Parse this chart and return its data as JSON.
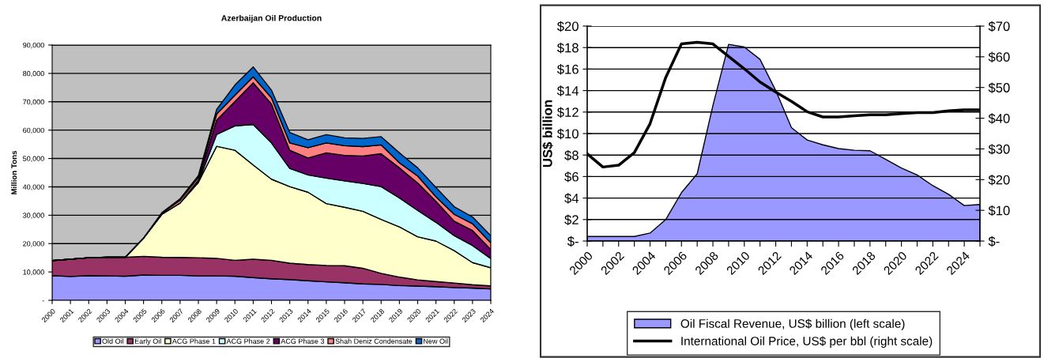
{
  "chart_data": [
    {
      "type": "area",
      "stacked": true,
      "title": "Azerbaijan Oil Production",
      "ylabel": "Million Tons",
      "categories": [
        "2000",
        "2001",
        "2002",
        "2003",
        "2004",
        "2005",
        "2006",
        "2007",
        "2008",
        "2009",
        "2010",
        "2011",
        "2012",
        "2013",
        "2014",
        "2015",
        "2016",
        "2017",
        "2018",
        "2019",
        "2020",
        "2021",
        "2022",
        "2023",
        "2024"
      ],
      "ylim": [
        0,
        90000
      ],
      "yticks": [
        {
          "value": 0,
          "label": "-"
        },
        {
          "value": 10000,
          "label": "10,000"
        },
        {
          "value": 20000,
          "label": "20,000"
        },
        {
          "value": 30000,
          "label": "30,000"
        },
        {
          "value": 40000,
          "label": "40,000"
        },
        {
          "value": 50000,
          "label": "50,000"
        },
        {
          "value": 60000,
          "label": "60,000"
        },
        {
          "value": 70000,
          "label": "70,000"
        },
        {
          "value": 80000,
          "label": "80,000"
        },
        {
          "value": 90000,
          "label": "90,000"
        }
      ],
      "grid": "y",
      "legend": "bottom",
      "series": [
        {
          "name": "Old Oil",
          "color": "#9999ff",
          "values": [
            8700,
            8400,
            8700,
            8600,
            8500,
            8900,
            8800,
            8800,
            8600,
            8600,
            8500,
            8000,
            7600,
            7300,
            6900,
            6500,
            6200,
            5800,
            5600,
            5200,
            5000,
            4800,
            4500,
            4300,
            4000
          ]
        },
        {
          "name": "Early Oil",
          "color": "#993366",
          "values": [
            5300,
            6100,
            6300,
            6600,
            6700,
            6600,
            6400,
            6300,
            6400,
            6200,
            5600,
            6500,
            6500,
            5800,
            5700,
            5800,
            6000,
            5500,
            3900,
            3000,
            2200,
            1800,
            1600,
            1200,
            1100
          ]
        },
        {
          "name": "ACG Phase 1",
          "color": "#ffffcc",
          "values": [
            0,
            0,
            0,
            0,
            0,
            6400,
            15100,
            19200,
            26600,
            39500,
            38800,
            33200,
            28600,
            27000,
            25500,
            21800,
            20600,
            20100,
            19000,
            17700,
            15200,
            14300,
            11400,
            7800,
            6400
          ]
        },
        {
          "name": "ACG Phase 2",
          "color": "#ccffff",
          "values": [
            0,
            0,
            0,
            0,
            0,
            0,
            0,
            0,
            0,
            4200,
            8600,
            14300,
            12800,
            6400,
            6100,
            9000,
            9300,
            9800,
            11600,
            10200,
            9300,
            6600,
            5300,
            6000,
            3200
          ]
        },
        {
          "name": "ACG Phase 3",
          "color": "#660066",
          "values": [
            0,
            0,
            0,
            0,
            0,
            0,
            0,
            0,
            800,
            5000,
            8600,
            14700,
            13700,
            6400,
            6000,
            8900,
            9000,
            9700,
            11600,
            10600,
            9700,
            7400,
            5100,
            5300,
            3200
          ]
        },
        {
          "name": "Shah Deniz Condensate",
          "color": "#ff8080",
          "values": [
            0,
            0,
            0,
            0,
            0,
            0,
            400,
            1000,
            1000,
            2200,
            2200,
            2100,
            2200,
            2600,
            3600,
            3500,
            3400,
            3300,
            3100,
            1800,
            2400,
            1600,
            2400,
            2400,
            2400
          ]
        },
        {
          "name": "New Oil",
          "color": "#0066cc",
          "values": [
            0,
            0,
            0,
            0,
            0,
            0,
            200,
            500,
            600,
            1600,
            3600,
            3500,
            2700,
            3700,
            2800,
            2900,
            2800,
            2900,
            2900,
            3500,
            2900,
            3300,
            2700,
            2400,
            2500
          ]
        }
      ]
    },
    {
      "type": "area",
      "ylabel": "US$ billion",
      "categories": [
        "2000",
        null,
        "2002",
        null,
        "2004",
        null,
        "2006",
        null,
        "2008",
        null,
        "2010",
        null,
        "2012",
        null,
        "2014",
        null,
        "2016",
        null,
        "2018",
        null,
        "2020",
        null,
        "2022",
        null,
        "2024",
        null
      ],
      "ylim": [
        0,
        20
      ],
      "yticks": [
        {
          "value": 0,
          "label": "$-"
        },
        {
          "value": 2,
          "label": "$2"
        },
        {
          "value": 4,
          "label": "$4"
        },
        {
          "value": 6,
          "label": "$6"
        },
        {
          "value": 8,
          "label": "$8"
        },
        {
          "value": 10,
          "label": "$10"
        },
        {
          "value": 12,
          "label": "$12"
        },
        {
          "value": 14,
          "label": "$14"
        },
        {
          "value": 16,
          "label": "$16"
        },
        {
          "value": 18,
          "label": "$18"
        },
        {
          "value": 20,
          "label": "$20"
        }
      ],
      "y2lim": [
        0,
        70
      ],
      "y2ticks": [
        {
          "value": 0,
          "label": "$-"
        },
        {
          "value": 10,
          "label": "$10"
        },
        {
          "value": 20,
          "label": "$20"
        },
        {
          "value": 30,
          "label": "$30"
        },
        {
          "value": 40,
          "label": "$40"
        },
        {
          "value": 50,
          "label": "$50"
        },
        {
          "value": 60,
          "label": "$60"
        },
        {
          "value": 70,
          "label": "$70"
        }
      ],
      "grid": "y",
      "legend": "bottom",
      "series": [
        {
          "type": "area",
          "name": "Oil Fiscal Revenue, US$ billion (left scale)",
          "color": "#9999ff",
          "values": [
            0.42,
            0.42,
            0.42,
            0.42,
            0.74,
            2.0,
            4.5,
            6.25,
            12.6,
            18.3,
            18.05,
            16.9,
            14.0,
            10.55,
            9.4,
            8.95,
            8.6,
            8.45,
            8.4,
            7.6,
            6.8,
            6.15,
            5.15,
            4.35,
            3.3,
            3.4
          ]
        },
        {
          "type": "line",
          "axis": "y2",
          "name": "International Oil Price, US$ per bbl (right scale)",
          "color": "#000000",
          "values": [
            28.4,
            24.1,
            24.7,
            28.8,
            38.2,
            53.3,
            64.2,
            64.7,
            64.2,
            60.1,
            56.1,
            51.8,
            48.5,
            45.5,
            42.1,
            40.4,
            40.4,
            40.8,
            41.1,
            41.1,
            41.5,
            41.8,
            41.8,
            42.4,
            42.7,
            42.7
          ]
        }
      ]
    }
  ]
}
